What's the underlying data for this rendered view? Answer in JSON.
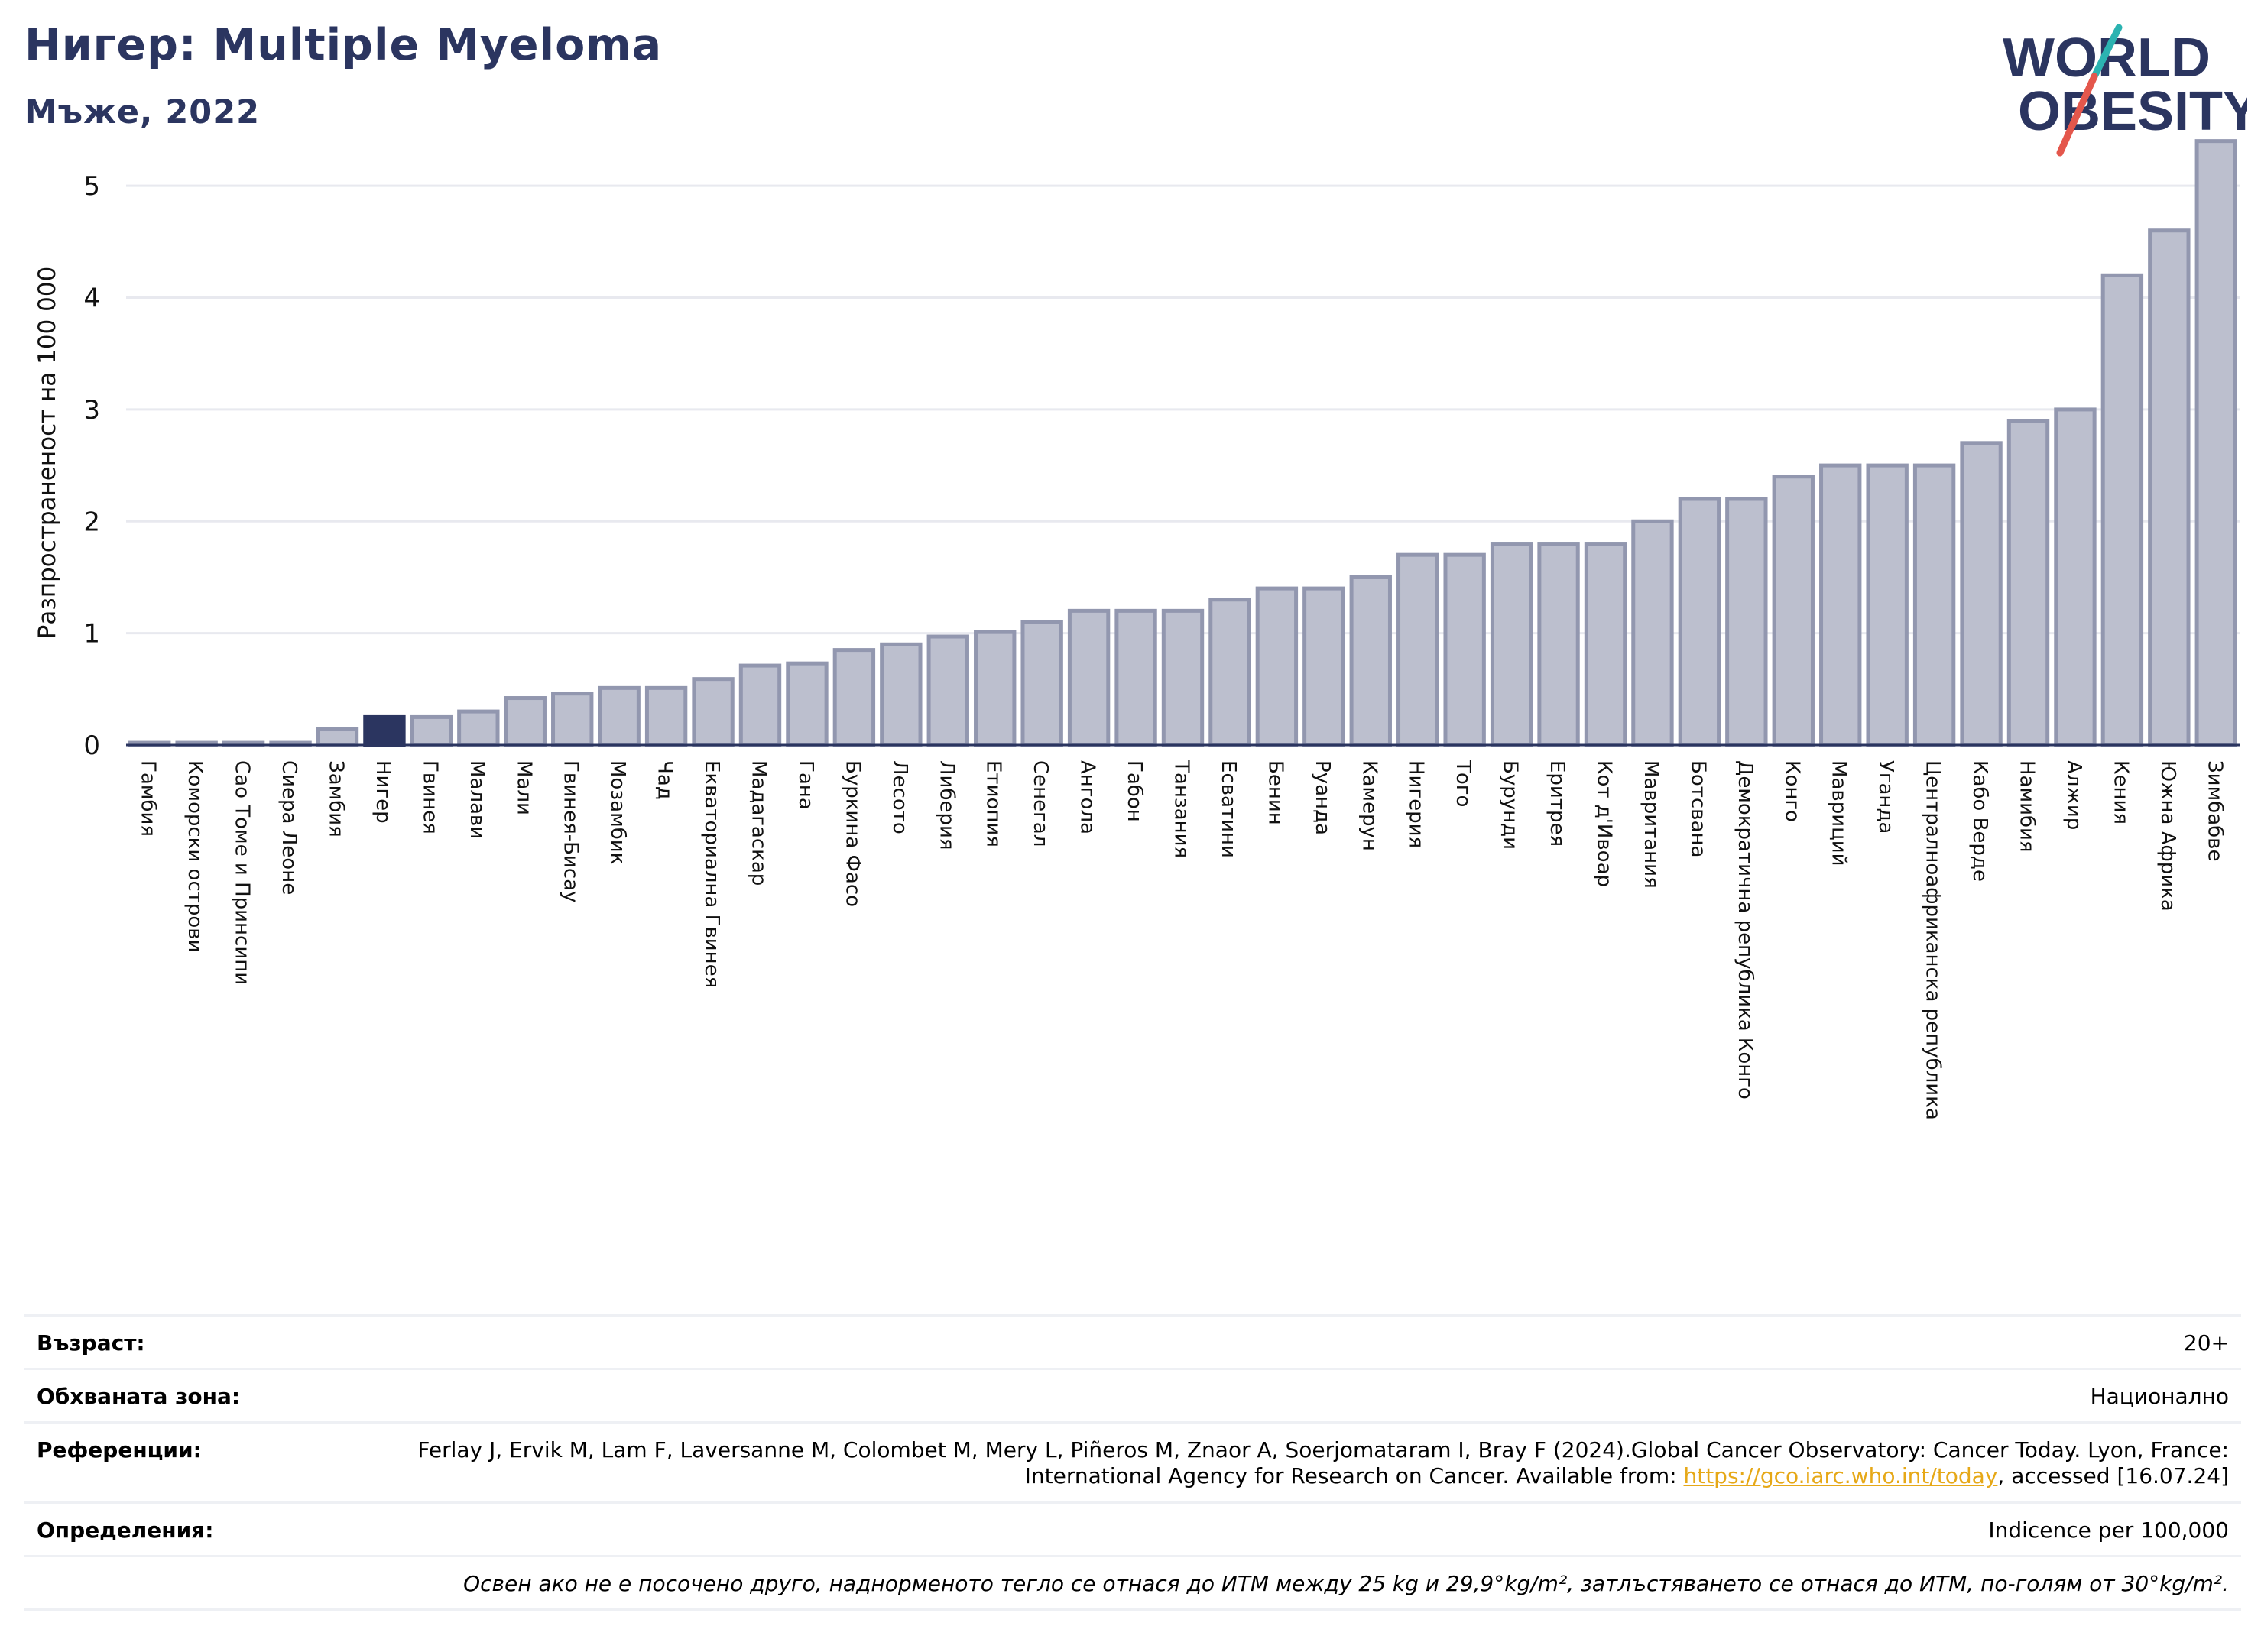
{
  "header": {
    "title": "Нигер: Multiple Myeloma",
    "subtitle": "Мъже, 2022"
  },
  "logo": {
    "line1": "WORLD",
    "line2": "OBESITY",
    "colors": {
      "text": "#2b3560",
      "slash_teal": "#2bb3b1",
      "slash_red": "#e4574c"
    }
  },
  "chart_data": {
    "type": "bar",
    "ylabel": "Разпространеност  на 100 000",
    "ylim": [
      0,
      5.5
    ],
    "yticks": [
      0,
      1,
      2,
      3,
      4,
      5
    ],
    "grid": true,
    "highlight": "Нигер",
    "colors": {
      "bar": "#bcbfce",
      "bar_edge": "#9297af",
      "highlight": "#2b3560"
    },
    "categories": [
      "Гамбия",
      "Коморски острови",
      "Сао Томе и Принсипи",
      "Сиера Леоне",
      "Замбия",
      "Нигер",
      "Гвинея",
      "Малави",
      "Мали",
      "Гвинея-Бисау",
      "Мозамбик",
      "Чад",
      "Екваториална Гвинея",
      "Мадагаскар",
      "Гана",
      "Буркина Фасо",
      "Лесото",
      "Либерия",
      "Етиопия",
      "Сенегал",
      "Ангола",
      "Габон",
      "Танзания",
      "Есватини",
      "Бенин",
      "Руанда",
      "Камерун",
      "Нигерия",
      "Того",
      "Бурунди",
      "Еритрея",
      "Кот д'Ивоар",
      "Мавритания",
      "Ботсвана",
      "Демократична република Конго",
      "Конго",
      "Мавриций",
      "Уганда",
      "Централноафриканска република",
      "Кабо Верде",
      "Намибия",
      "Алжир",
      "Кения",
      "Южна Африка",
      "Зимбабве"
    ],
    "values": [
      0.02,
      0.02,
      0.02,
      0.02,
      0.14,
      0.25,
      0.25,
      0.3,
      0.42,
      0.46,
      0.51,
      0.51,
      0.59,
      0.71,
      0.73,
      0.85,
      0.9,
      0.97,
      1.01,
      1.1,
      1.2,
      1.2,
      1.2,
      1.3,
      1.4,
      1.4,
      1.5,
      1.7,
      1.7,
      1.8,
      1.8,
      1.8,
      2.0,
      2.2,
      2.2,
      2.4,
      2.5,
      2.5,
      2.5,
      2.7,
      2.9,
      3.0,
      4.2,
      4.6,
      5.4
    ]
  },
  "meta": {
    "age_label": "Възраст:",
    "age_value": "20+",
    "area_label": "Обхваната зона:",
    "area_value": "Национално",
    "ref_label": "Референции:",
    "ref_text1": "Ferlay J, Ervik M, Lam F, Laversanne M, Colombet M, Mery L, Piñeros M, Znaor A, Soerjomataram I, Bray F (2024).Global Cancer Observatory: Cancer Today. Lyon, France: International Agency for Research on Cancer. Available from: ",
    "ref_link": "https://gco.iarc.who.int/today",
    "ref_text2": ", accessed [16.07.24]",
    "def_label": "Определения:",
    "def_value": "Indicence per 100,000",
    "note": "Освен ако не е посочено друго, наднорменото тегло се отнася до ИТМ между 25 kg и 29,9°kg/m², затлъстяването се отнася до ИТМ, по-голям от 30°kg/m²."
  }
}
